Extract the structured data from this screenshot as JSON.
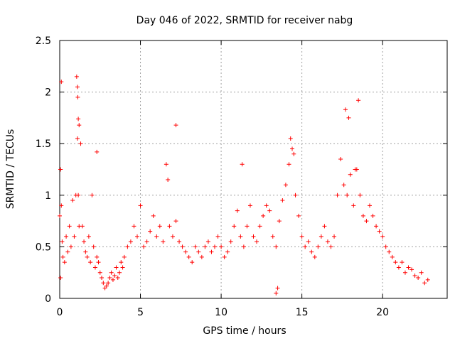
{
  "chart_data": {
    "type": "scatter",
    "title": "Day 046 of 2022, SRMTID for receiver nabg",
    "xlabel": "GPS time / hours",
    "ylabel": "SRMTID / TECUs",
    "xlim": [
      0,
      24
    ],
    "ylim": [
      0,
      2.5
    ],
    "xticks": [
      0,
      5,
      10,
      15,
      20
    ],
    "xtick_labels": [
      "0",
      "5",
      "10",
      "15",
      "20"
    ],
    "yticks": [
      0,
      0.5,
      1,
      1.5,
      2,
      2.5
    ],
    "ytick_labels": [
      "0",
      "0.5",
      "1",
      "1.5",
      "2",
      "2.5"
    ],
    "grid": true,
    "marker": "+",
    "color": "#ff0000",
    "series": [
      {
        "name": "SRMTID",
        "x": [
          0.0,
          0.05,
          0.1,
          0.15,
          0.2,
          0.3,
          0.4,
          0.5,
          0.6,
          0.7,
          0.8,
          0.9,
          1.0,
          1.05,
          1.1,
          1.15,
          1.2,
          1.3,
          1.4,
          1.5,
          1.6,
          1.7,
          1.8,
          1.9,
          2.0,
          2.1,
          2.2,
          2.3,
          2.4,
          2.5,
          2.6,
          2.7,
          2.8,
          2.9,
          3.0,
          3.1,
          3.2,
          3.3,
          3.4,
          3.5,
          3.6,
          3.7,
          3.8,
          3.9,
          4.0,
          4.2,
          4.4,
          4.6,
          4.8,
          5.0,
          5.2,
          5.4,
          5.6,
          5.8,
          6.0,
          6.2,
          6.4,
          6.6,
          6.7,
          6.8,
          7.0,
          7.2,
          7.4,
          7.6,
          7.8,
          8.0,
          8.2,
          8.4,
          8.6,
          8.8,
          9.0,
          9.2,
          9.4,
          9.6,
          9.8,
          10.0,
          10.2,
          10.4,
          10.6,
          10.8,
          11.0,
          11.2,
          11.4,
          11.6,
          11.8,
          12.0,
          12.2,
          12.4,
          12.6,
          12.8,
          13.0,
          13.2,
          13.4,
          13.6,
          13.8,
          14.0,
          14.2,
          14.4,
          14.6,
          14.8,
          15.0,
          15.2,
          15.4,
          15.6,
          15.8,
          16.0,
          16.2,
          16.4,
          16.6,
          16.8,
          17.0,
          17.2,
          17.4,
          17.6,
          17.8,
          18.0,
          18.2,
          18.4,
          18.6,
          18.8,
          19.0,
          19.2,
          19.4,
          19.6,
          19.8,
          20.0,
          20.2,
          20.4,
          20.6,
          20.8,
          21.0,
          21.2,
          21.4,
          21.6,
          21.8,
          22.0,
          22.2,
          22.4,
          22.6,
          22.8,
          0.05,
          0.1,
          1.1,
          1.12,
          1.15,
          1.2,
          2.3,
          7.2,
          11.3,
          14.3,
          14.5,
          17.7,
          17.9,
          18.5,
          18.3,
          13.4,
          13.5
        ],
        "y": [
          0.8,
          1.25,
          0.9,
          0.55,
          0.4,
          0.35,
          0.6,
          0.45,
          0.7,
          0.5,
          0.95,
          0.6,
          1.0,
          2.15,
          1.55,
          1.0,
          0.7,
          1.5,
          0.7,
          0.55,
          0.45,
          0.4,
          0.6,
          0.35,
          1.0,
          0.5,
          0.3,
          0.4,
          0.35,
          0.25,
          0.2,
          0.15,
          0.1,
          0.12,
          0.15,
          0.2,
          0.25,
          0.18,
          0.22,
          0.3,
          0.2,
          0.25,
          0.35,
          0.3,
          0.4,
          0.5,
          0.55,
          0.7,
          0.6,
          0.9,
          0.5,
          0.55,
          0.65,
          0.8,
          0.6,
          0.7,
          0.55,
          1.3,
          1.15,
          0.7,
          0.6,
          0.75,
          0.55,
          0.5,
          0.45,
          0.4,
          0.35,
          0.5,
          0.45,
          0.4,
          0.5,
          0.55,
          0.45,
          0.5,
          0.6,
          0.5,
          0.4,
          0.45,
          0.55,
          0.7,
          0.85,
          0.6,
          0.5,
          0.7,
          0.9,
          0.6,
          0.55,
          0.7,
          0.8,
          0.9,
          0.85,
          0.6,
          0.5,
          0.75,
          0.95,
          1.1,
          1.3,
          1.45,
          1.0,
          0.8,
          0.6,
          0.5,
          0.55,
          0.45,
          0.4,
          0.5,
          0.6,
          0.7,
          0.55,
          0.5,
          0.6,
          1.0,
          1.35,
          1.1,
          1.0,
          1.2,
          0.9,
          1.25,
          1.0,
          0.8,
          0.75,
          0.9,
          0.8,
          0.7,
          0.65,
          0.6,
          0.5,
          0.45,
          0.4,
          0.35,
          0.3,
          0.35,
          0.25,
          0.3,
          0.28,
          0.22,
          0.2,
          0.25,
          0.15,
          0.18,
          0.2,
          2.1,
          2.05,
          1.95,
          1.74,
          1.68,
          1.42,
          1.68,
          1.3,
          1.55,
          1.4,
          1.83,
          1.75,
          1.92,
          1.25,
          0.05,
          0.1
        ]
      }
    ]
  }
}
